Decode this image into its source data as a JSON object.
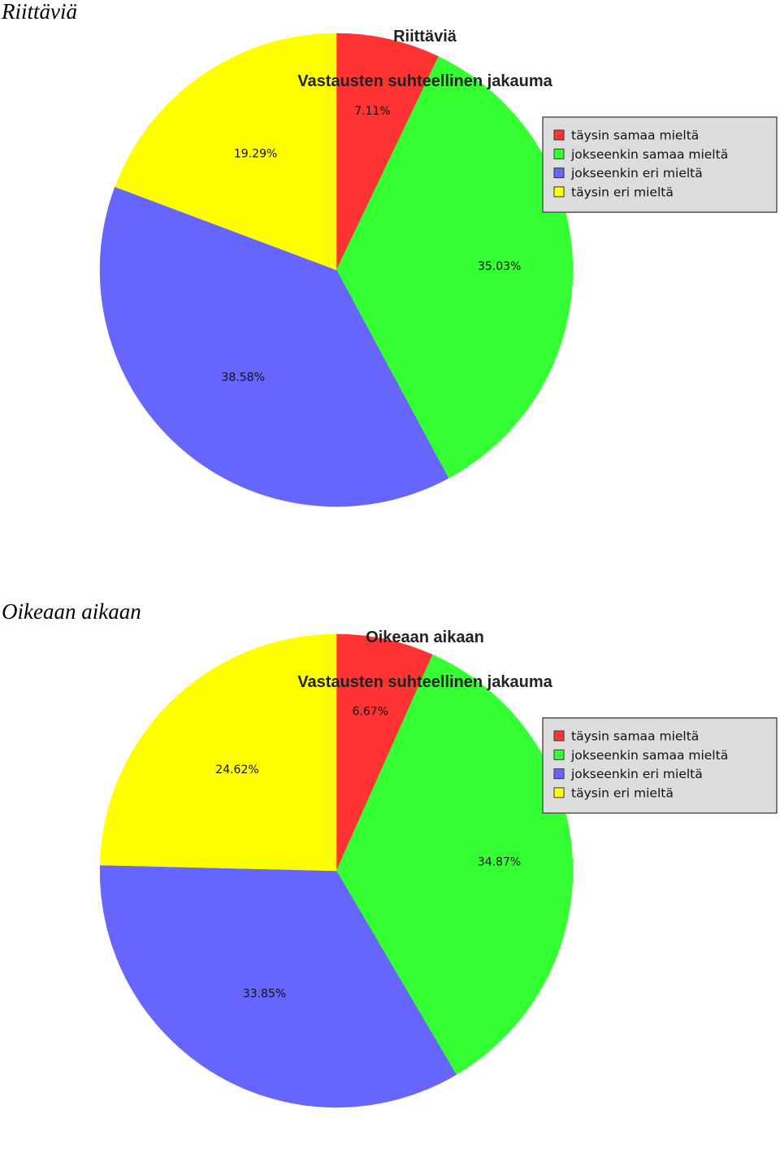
{
  "legend_labels": [
    "täysin samaa mieltä",
    "jokseenkin samaa mieltä",
    "jokseenkin eri mieltä",
    "täysin eri mieltä"
  ],
  "colors": [
    "#ff3333",
    "#33ff33",
    "#6666ff",
    "#ffff00"
  ],
  "chart_data": [
    {
      "type": "pie",
      "heading": "Riittäviä",
      "title": "Riittäviä",
      "subtitle": "Vastausten suhteellinen jakauma",
      "categories": [
        "täysin samaa mieltä",
        "jokseenkin samaa mieltä",
        "jokseenkin eri mieltä",
        "täysin eri mieltä"
      ],
      "values": [
        7.11,
        35.03,
        38.58,
        19.29
      ],
      "labels": [
        "7.11%",
        "35.03%",
        "38.58%",
        "19.29%"
      ],
      "legend_position": "top-right"
    },
    {
      "type": "pie",
      "heading": "Oikeaan aikaan",
      "title": "Oikeaan aikaan",
      "subtitle": "Vastausten suhteellinen jakauma",
      "categories": [
        "täysin samaa mieltä",
        "jokseenkin samaa mieltä",
        "jokseenkin eri mieltä",
        "täysin eri mieltä"
      ],
      "values": [
        6.67,
        34.87,
        33.85,
        24.62
      ],
      "labels": [
        "6.67%",
        "34.87%",
        "33.85%",
        "24.62%"
      ],
      "legend_position": "top-right"
    }
  ]
}
